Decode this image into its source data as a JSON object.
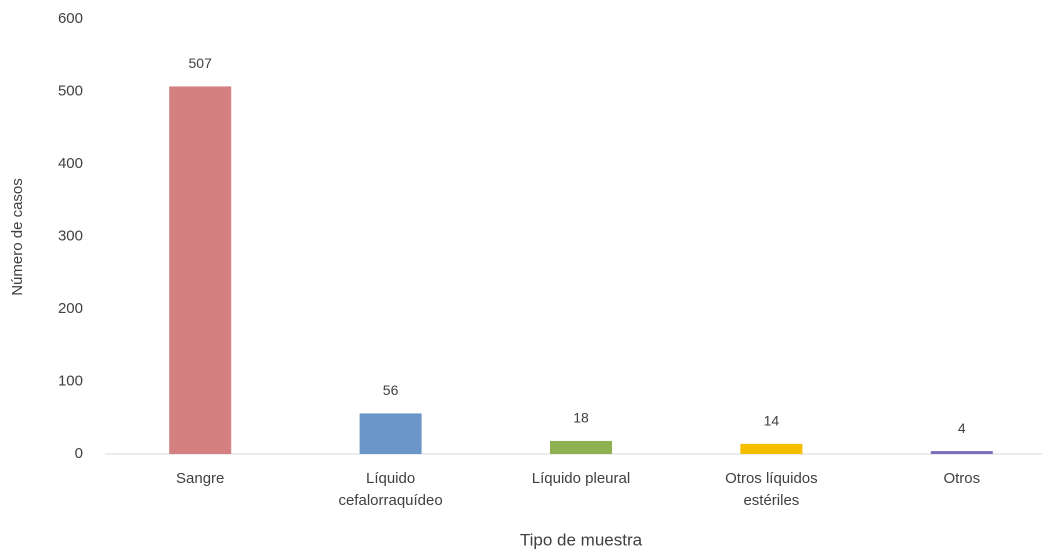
{
  "chart_data": {
    "type": "bar",
    "x_label": "Tipo de muestra",
    "y_label": "Número de casos",
    "categories": [
      "Sangre",
      "Líquido cefalorraquídeo",
      "Líquido pleural",
      "Otros líquidos estériles",
      "Otros"
    ],
    "values": [
      507,
      56,
      18,
      14,
      4
    ],
    "colors": [
      "#d48080",
      "#6a95c8",
      "#8db050",
      "#f5bf00",
      "#7d6bbd"
    ],
    "ylim": [
      0,
      600
    ],
    "yticks": [
      0,
      100,
      200,
      300,
      400,
      500,
      600
    ],
    "grid": false
  }
}
